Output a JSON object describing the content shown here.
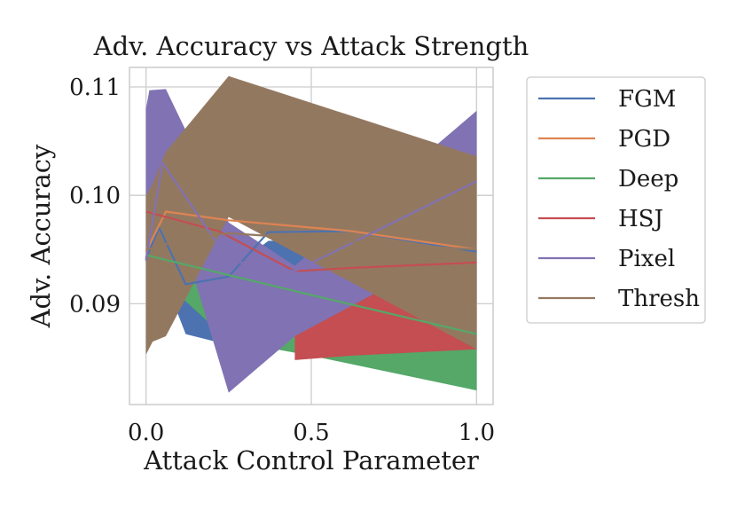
{
  "chart_data": {
    "type": "line",
    "title": "Adv. Accuracy vs Attack Strength",
    "xlabel": "Attack Control Parameter",
    "ylabel": "Adv. Accuracy",
    "xlim": [
      -0.05,
      1.05
    ],
    "ylim": [
      0.0807,
      0.1118
    ],
    "xticks": [
      0.0,
      0.5,
      1.0
    ],
    "xtick_labels": [
      "0.0",
      "0.5",
      "1.0"
    ],
    "yticks": [
      0.09,
      0.1,
      0.11
    ],
    "ytick_labels": [
      "0.09",
      "0.10",
      "0.11"
    ],
    "grid": true,
    "legend_position": "outside-right",
    "series": [
      {
        "name": "FGM",
        "color": "#4c72b0",
        "x": [
          0.0,
          0.04,
          0.12,
          0.25,
          0.37,
          0.62,
          1.0
        ],
        "y": [
          0.0942,
          0.097,
          0.0918,
          0.0925,
          0.0966,
          0.0967,
          0.0948
        ],
        "band": {
          "x": [
            0.0,
            0.04,
            0.12,
            0.25,
            0.37,
            0.62,
            1.0
          ],
          "lower": [
            0.0938,
            0.0935,
            0.0872,
            0.0862,
            0.0865,
            0.0868,
            0.0878
          ],
          "upper": [
            0.0947,
            0.095,
            0.093,
            0.093,
            0.0958,
            0.096,
            0.095
          ]
        }
      },
      {
        "name": "PGD",
        "color": "#dd8452",
        "x": [
          0.0,
          0.06,
          0.25,
          0.62,
          1.0
        ],
        "y": [
          0.0948,
          0.0985,
          0.0977,
          0.0967,
          0.095
        ],
        "band": null
      },
      {
        "name": "Deep",
        "color": "#55a868",
        "x": [
          0.0,
          0.5,
          1.0
        ],
        "y": [
          0.0945,
          0.0908,
          0.0872
        ],
        "band": {
          "x": [
            0.0,
            0.11,
            0.25,
            0.5,
            1.0
          ],
          "lower": [
            0.094,
            0.0905,
            0.0866,
            0.0852,
            0.082
          ],
          "upper": [
            0.0948,
            0.093,
            0.0915,
            0.0903,
            0.0872
          ]
        }
      },
      {
        "name": "HSJ",
        "color": "#c44e52",
        "x": [
          0.0,
          0.22,
          0.45,
          0.62,
          1.0
        ],
        "y": [
          0.0985,
          0.0967,
          0.093,
          0.0933,
          0.0938
        ],
        "band": {
          "x": [
            0.45,
            0.62,
            1.0
          ],
          "lower": [
            0.0848,
            0.0852,
            0.0858
          ],
          "upper": [
            0.093,
            0.092,
            0.09
          ]
        }
      },
      {
        "name": "Pixel",
        "color": "#8172b3",
        "x": [
          0.0,
          0.05,
          0.25,
          0.45,
          1.0
        ],
        "y": [
          0.094,
          0.103,
          0.094,
          0.093,
          0.1013
        ],
        "band": {
          "x": [
            0.0,
            0.01,
            0.06,
            0.12,
            0.25,
            0.45,
            1.0
          ],
          "lower": [
            0.094,
            0.099,
            0.099,
            0.095,
            0.0818,
            0.087,
            0.096
          ],
          "upper": [
            0.108,
            0.1097,
            0.1098,
            0.106,
            0.0975,
            0.0935,
            0.1078
          ]
        }
      },
      {
        "name": "Thresh",
        "color": "#937860",
        "x": [
          0.0,
          0.12,
          0.25,
          0.5,
          1.0
        ],
        "y": [
          0.095,
          0.096,
          0.0965,
          0.096,
          0.095
        ],
        "band": {
          "x": [
            0.0,
            0.02,
            0.06,
            0.25,
            1.0
          ],
          "lower": [
            0.0853,
            0.0865,
            0.087,
            0.098,
            0.0858
          ],
          "upper": [
            0.1,
            0.101,
            0.104,
            0.111,
            0.1036
          ]
        }
      }
    ]
  }
}
